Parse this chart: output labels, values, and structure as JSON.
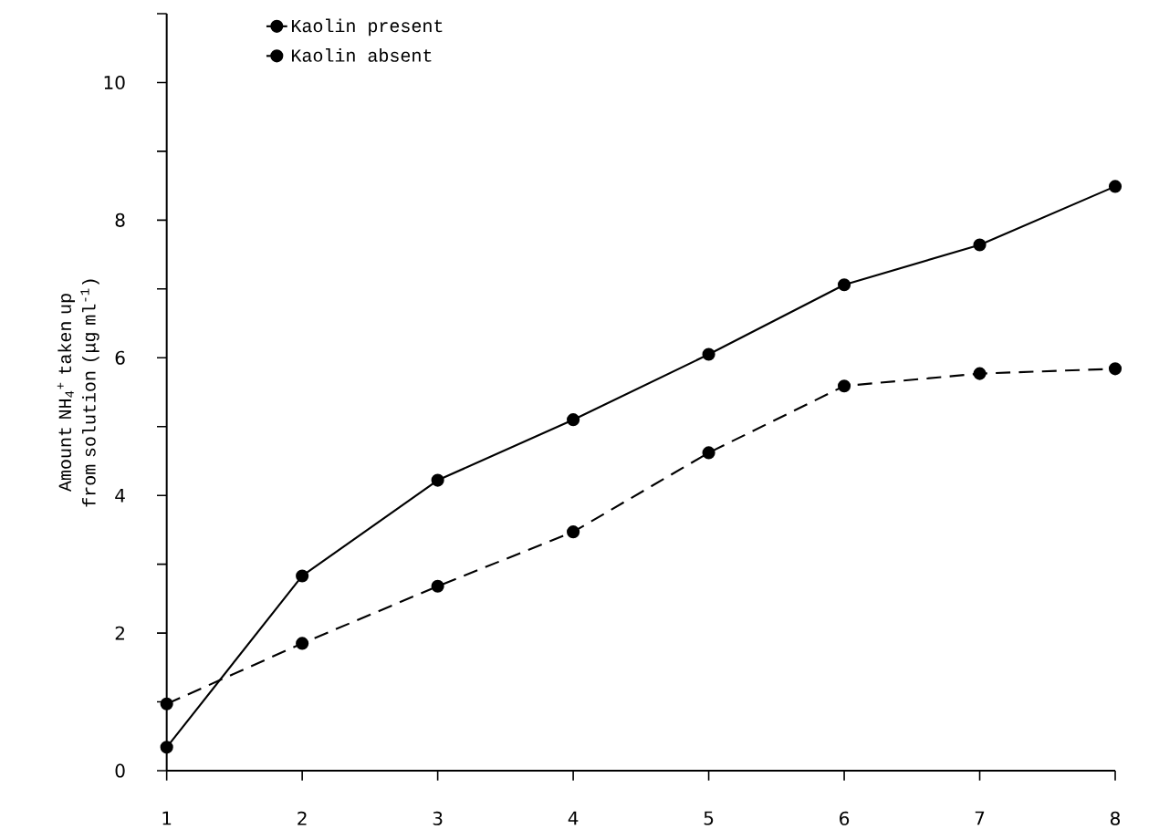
{
  "chart_data": {
    "type": "line",
    "ylabel": "Amount NH$_{4}$$^{+}$ taken up from solution (μg ml$^{-1}$)",
    "x": [
      1,
      2,
      3,
      4,
      5,
      6,
      7,
      8
    ],
    "xlim": [
      1,
      8
    ],
    "xticks": [
      1,
      2,
      3,
      4,
      5,
      6,
      7,
      8
    ],
    "ylim": [
      0,
      11
    ],
    "yticks": [
      0,
      {
        "value": 1,
        "label": null
      },
      2,
      {
        "value": 3,
        "label": null
      },
      4,
      {
        "value": 5,
        "label": null
      },
      6,
      {
        "value": 7,
        "label": null
      },
      8,
      {
        "value": 9,
        "label": null
      },
      10,
      {
        "value": 11,
        "label": null
      }
    ],
    "series": [
      {
        "name": "Kaolin present",
        "color": "#000000",
        "line_style": "solid",
        "values": [
          0.34,
          2.83,
          4.22,
          5.1,
          6.05,
          7.06,
          7.64,
          8.49
        ]
      },
      {
        "name": "Kaolin absent",
        "color": "#000000",
        "line_style": "dashed",
        "values": [
          0.97,
          1.85,
          2.68,
          3.47,
          4.62,
          5.59,
          5.77,
          5.84
        ]
      }
    ],
    "marker": "circle",
    "legend": "top left",
    "grid": false
  }
}
